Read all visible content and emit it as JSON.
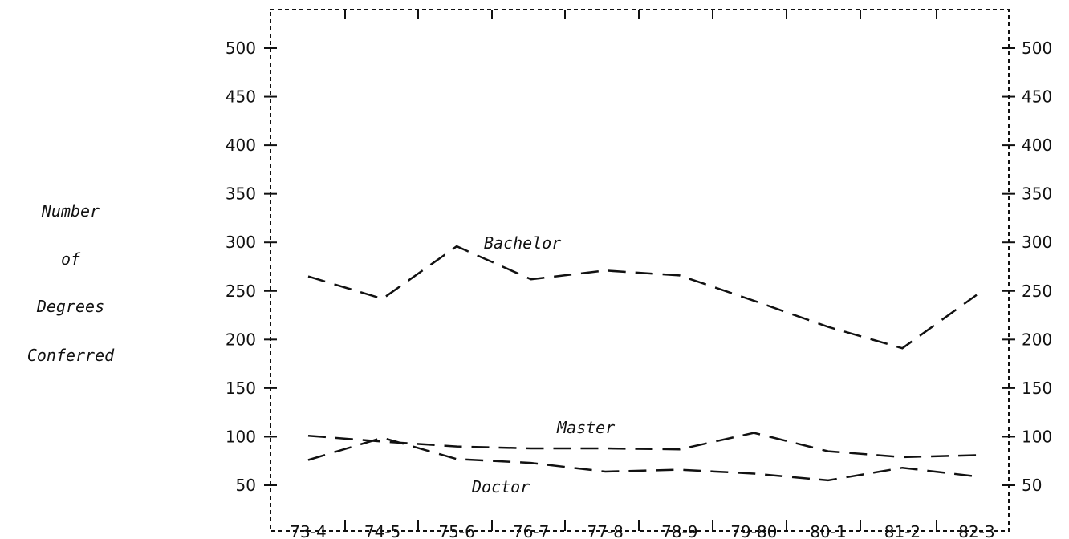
{
  "chart_data": {
    "type": "line",
    "categories": [
      "73-4",
      "74-5",
      "75-6",
      "76-7",
      "77-8",
      "78-9",
      "79-80",
      "80-1",
      "81-2",
      "82-3"
    ],
    "ylabel": [
      "Number",
      "of",
      "Degrees",
      "Conferred"
    ],
    "yticks": [
      500,
      450,
      400,
      350,
      300,
      250,
      200,
      150,
      100,
      50
    ],
    "ylim": [
      20,
      550
    ],
    "grid": false,
    "series": [
      {
        "name": "Bachelor",
        "values": [
          265,
          242,
          296,
          262,
          271,
          266,
          240,
          213,
          191,
          246
        ]
      },
      {
        "name": "Master",
        "values": [
          101,
          95,
          90,
          88,
          88,
          87,
          104,
          85,
          79,
          81
        ]
      },
      {
        "name": "Doctor",
        "values": [
          76,
          99,
          77,
          73,
          64,
          66,
          62,
          55,
          68,
          59
        ]
      }
    ]
  }
}
